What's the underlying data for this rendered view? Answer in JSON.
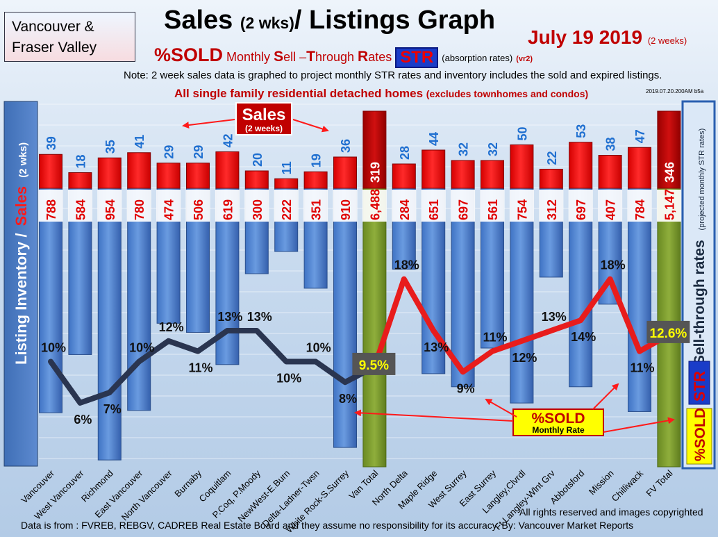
{
  "header": {
    "region_line1": "Vancouver &",
    "region_line2": "Fraser Valley",
    "title_main": "Sales",
    "title_paren": "(2 wks)",
    "title_rest": "/ Listings Graph",
    "date_main": "July 19 2019",
    "date_paren": "(2 weeks)",
    "subtitle_sold": "%SOLD",
    "subtitle_s": "S",
    "subtitle_ell": "ell",
    "subtitle_t": "T",
    "subtitle_hrough": "hrough",
    "subtitle_r": "R",
    "subtitle_ates": "ates",
    "subtitle_monthly": "Monthly",
    "str_badge": "STR",
    "subtitle_abs": "(absorption rates)",
    "subtitle_ver": "(vr2)",
    "note": "Note: 2 week sales data is graphed to project monthly STR rates and inventory includes the sold and expired listings.",
    "scope_main": "All single family residential detached homes",
    "scope_paren": "(excludes townhomes and condos)",
    "stamp": "2019.07.20.200AM b5a"
  },
  "labels": {
    "left_axis_a": "Listing Inventory /",
    "left_axis_b": "Sales",
    "left_axis_c": "(2  wks)",
    "right_axis_a": "Sell-through rates",
    "right_axis_b": "(projected monthly STR rates)",
    "right_str": "STR",
    "right_sold": "%SOLD",
    "sales_callout": "Sales",
    "sales_callout_sub": "(2 weeks)",
    "sold_callout": "%SOLD",
    "sold_callout_sub": "Monthly Rate"
  },
  "footer": {
    "copyright": "All rights reserved and  images copyrighted",
    "source": "Data is from : FVREB, REBGV, CADREB Real Estate Board and they assume no responsibility for its accuracy. By: Vancouver Market Reports"
  },
  "colors": {
    "sales_bar": "#ff1a1a",
    "inventory_bar": "#4f86d6",
    "total_sales_bar": "#c00000",
    "total_inventory_bar": "#7a9a2e",
    "str_line_van": "#2a3550",
    "str_line_fv": "#e81c1c",
    "total_badge_bg": "#555555",
    "total_badge_text": "#ffff00"
  },
  "chart_data": {
    "type": "bar",
    "categories": [
      "Vancouver",
      "West Vancouver",
      "Richmond",
      "East Vancouver",
      "North Vancouver",
      "Burnaby",
      "Coquitlam",
      "P.Coq, P.Moody",
      "NewWest-E.Burn",
      "Delta-Ladner-Twsn",
      "White Rock-S.Surrey",
      "Van Total",
      "North Delta",
      "Maple Ridge",
      "West Surrey",
      "East Surrey",
      "Langley,Clvrdl",
      "Ft Langley-Wlnt Grv",
      "Abbotsford",
      "Mission",
      "Chilliwack",
      "FV Total"
    ],
    "series": [
      {
        "name": "Sales",
        "values": [
          39,
          18,
          35,
          41,
          29,
          29,
          42,
          20,
          11,
          19,
          36,
          319,
          28,
          44,
          32,
          32,
          50,
          22,
          53,
          38,
          47,
          346
        ]
      },
      {
        "name": "Listing Inventory",
        "values": [
          788,
          584,
          954,
          780,
          474,
          506,
          619,
          300,
          222,
          351,
          910,
          6488,
          284,
          651,
          697,
          561,
          754,
          312,
          697,
          407,
          784,
          5147
        ]
      },
      {
        "name": "Sell-through rates",
        "values": [
          10,
          6,
          7,
          10,
          12,
          11,
          13,
          13,
          10,
          10,
          8,
          9.5,
          18,
          13,
          9,
          11,
          12,
          13,
          14,
          18,
          11,
          12.6
        ]
      }
    ],
    "sales_labels": [
      "39",
      "18",
      "35",
      "41",
      "29",
      "29",
      "42",
      "20",
      "11",
      "19",
      "36",
      "319",
      "28",
      "44",
      "32",
      "32",
      "50",
      "22",
      "53",
      "38",
      "47",
      "346"
    ],
    "inventory_labels": [
      "788",
      "584",
      "954",
      "780",
      "474",
      "506",
      "619",
      "300",
      "222",
      "351",
      "910",
      "6,488",
      "284",
      "651",
      "697",
      "561",
      "754",
      "312",
      "697",
      "407",
      "784",
      "5,147"
    ],
    "str_labels": [
      "10%",
      "6%",
      "7%",
      "10%",
      "12%",
      "11%",
      "13%",
      "13%",
      "10%",
      "10%",
      "8%",
      "9.5%",
      "18%",
      "13%",
      "9%",
      "11%",
      "12%",
      "13%",
      "14%",
      "18%",
      "11%",
      "12.6%"
    ],
    "total_indices": [
      11,
      21
    ],
    "sales_ylim": [
      0,
      60
    ],
    "inventory_ylim": [
      0,
      1000
    ],
    "str_ylim": [
      0,
      20
    ],
    "title": "Sales (2 wks)/ Listings Graph",
    "xlabel": "",
    "ylabel": "Listing Inventory / Sales (2  wks)",
    "y2label": "Sell-through rates",
    "grid": true
  }
}
